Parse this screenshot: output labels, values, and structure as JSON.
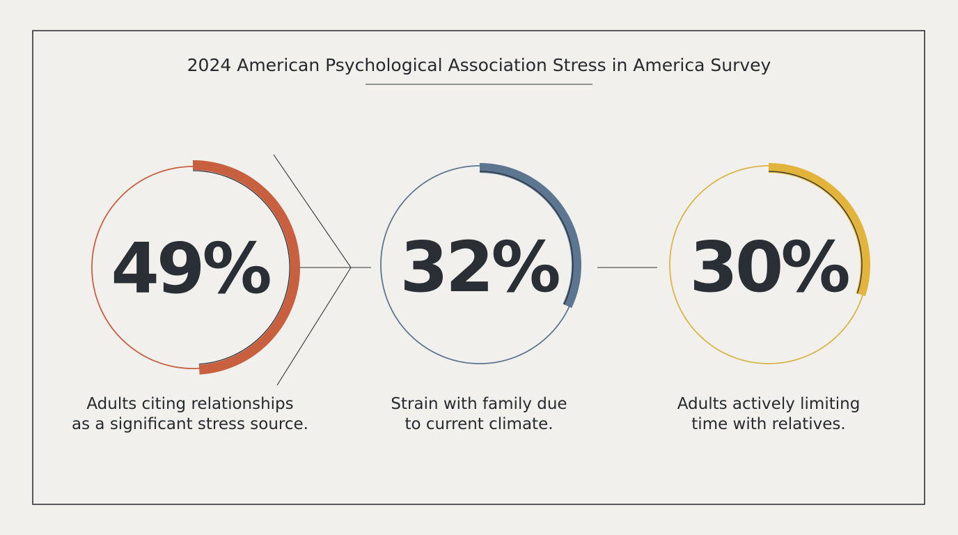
{
  "chart_data": {
    "type": "radial-progress",
    "title": "2024 American Psychological Association Stress in America Survey",
    "unit": "%",
    "items": [
      {
        "value": 49,
        "value_label": "49%",
        "caption_lines": [
          "Adults citing relationships",
          "as a significant stress source."
        ],
        "color": "#c8603f",
        "ring_color": "#c8603f"
      },
      {
        "value": 32,
        "value_label": "32%",
        "caption_lines": [
          "Strain with family due",
          "to current climate."
        ],
        "color": "#5c7591",
        "ring_color": "#5c7591"
      },
      {
        "value": 30,
        "value_label": "30%",
        "caption_lines": [
          "Adults actively limiting",
          "time with relatives."
        ],
        "color": "#e2b43c",
        "ring_color": "#d9b545"
      }
    ]
  },
  "colors": {
    "background": "#f1f0ec",
    "frame": "#2f3337",
    "connector": "#2f3337"
  }
}
